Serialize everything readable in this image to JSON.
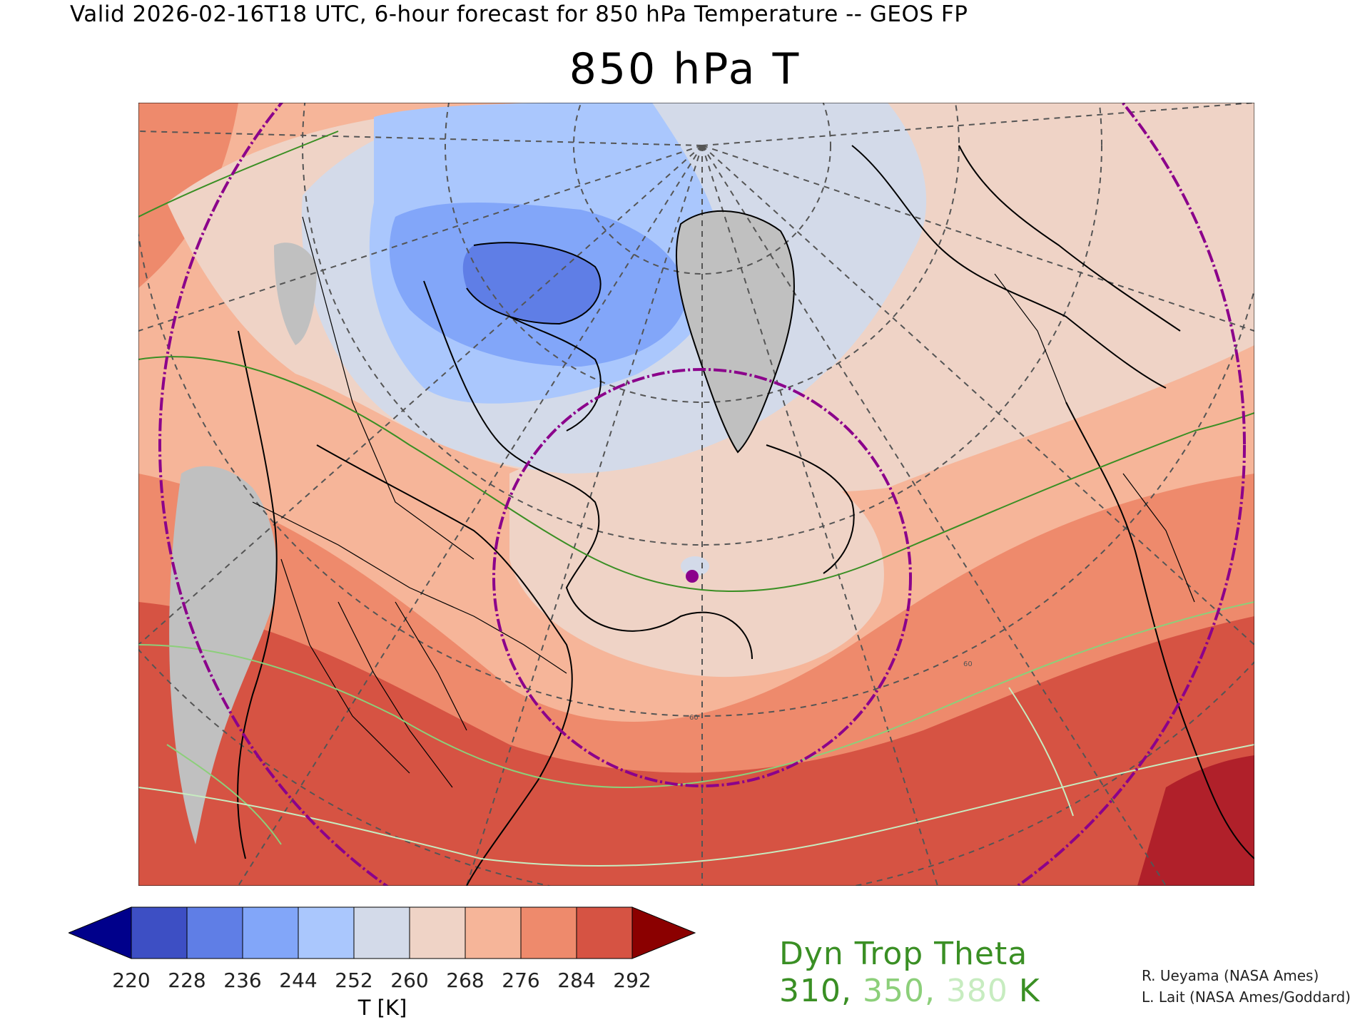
{
  "header": {
    "valid_line": "Valid 2026-02-16T18 UTC, 6-hour forecast for 850 hPa Temperature -- GEOS FP",
    "title": "850 hPa T"
  },
  "colorbar": {
    "ticks": [
      "220",
      "228",
      "236",
      "244",
      "252",
      "260",
      "268",
      "276",
      "284",
      "292"
    ],
    "under_color": "#00008b",
    "colors": [
      "#3d4fc4",
      "#5f7ee6",
      "#82a6f9",
      "#aac7fd",
      "#d3dae9",
      "#efd3c6",
      "#f6b599",
      "#ee8a6c",
      "#d65343"
    ],
    "over_color": "#8b0000",
    "units": "T [K]"
  },
  "map": {
    "projection": "polar stereographic",
    "field": "850 hPa Temperature",
    "missing_color": "#c0c0c0",
    "coastline_color": "#000000",
    "graticule_color": "#555555",
    "marker_color": "#8b008b",
    "ring_labels": [
      "60",
      "60"
    ]
  },
  "tropopause": {
    "title": "Dyn Trop Theta",
    "values": [
      {
        "text": "310",
        "color": "#3a8f24"
      },
      {
        "text": "350",
        "color": "#8ccf7a"
      },
      {
        "text": "380",
        "color": "#c7ecc0"
      }
    ],
    "sep": ", ",
    "unit": " K"
  },
  "credits": [
    "R. Ueyama (NASA Ames)",
    "L. Lait (NASA Ames/Goddard)"
  ]
}
